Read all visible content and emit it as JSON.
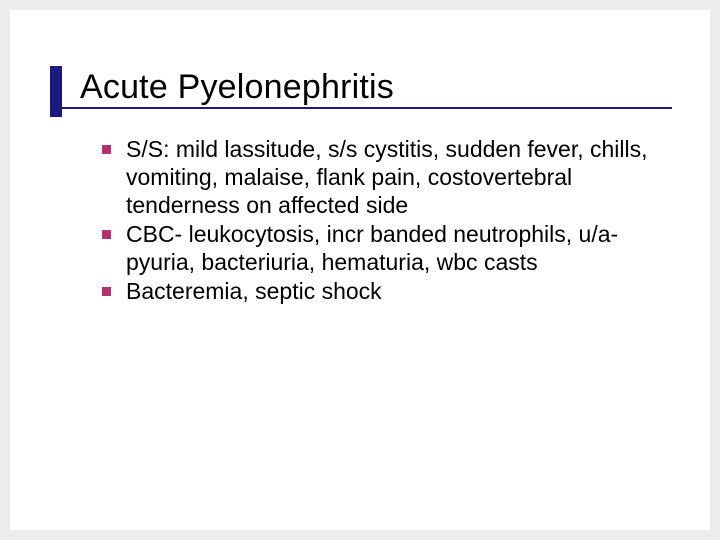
{
  "slide": {
    "title": "Acute Pyelonephritis",
    "bullets": [
      "S/S: mild lassitude, s/s cystitis, sudden fever, chills, vomiting, malaise, flank pain, costovertebral tenderness on affected side",
      "CBC- leukocytosis, incr banded neutrophils, u/a- pyuria, bacteriuria, hematuria, wbc casts",
      "Bacteremia, septic shock"
    ]
  },
  "colors": {
    "background_page": "#ececec",
    "background_slide": "#ffffff",
    "accent_line": "#1a1a80",
    "bullet_square": "#b62f6e",
    "text": "#000000"
  },
  "typography": {
    "title_fontsize": 34,
    "body_fontsize": 23,
    "font_family": "Verdana"
  }
}
